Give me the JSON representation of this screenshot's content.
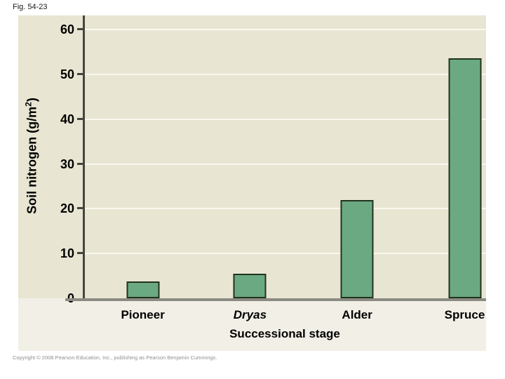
{
  "figure_label": "Fig. 54-23",
  "copyright": "Copyright © 2008 Pearson Education, Inc., publishing as Pearson Benjamin Cummings.",
  "colors": {
    "page_bg": "#FFFFFF",
    "panel_bg": "#F2EFE7",
    "plot_bg": "#E8E5D2",
    "gridline": "#FAF8EE",
    "axis": "#45453F",
    "baseline": "#8B8B82",
    "bar_fill": "#6BA983",
    "bar_border": "#20331E",
    "text": "#000000",
    "copyright_text": "#8F8F8F"
  },
  "chart_data": {
    "type": "bar",
    "categories": [
      "Pioneer",
      "Dryas",
      "Alder",
      "Spruce"
    ],
    "italic_categories": [
      false,
      true,
      false,
      false
    ],
    "values": [
      3.8,
      5.5,
      22,
      53.5
    ],
    "xlabel": "Successional stage",
    "ylabel": "Soil nitrogen (g/m²)",
    "ylabel_parts": {
      "pre": "Soil nitrogen (g/m",
      "sup": "2",
      "post": ")"
    },
    "yticks": [
      0,
      10,
      20,
      30,
      40,
      50,
      60
    ],
    "ylim": [
      0,
      63
    ],
    "grid": "horizontal-white-gridlines",
    "legend": "none"
  }
}
